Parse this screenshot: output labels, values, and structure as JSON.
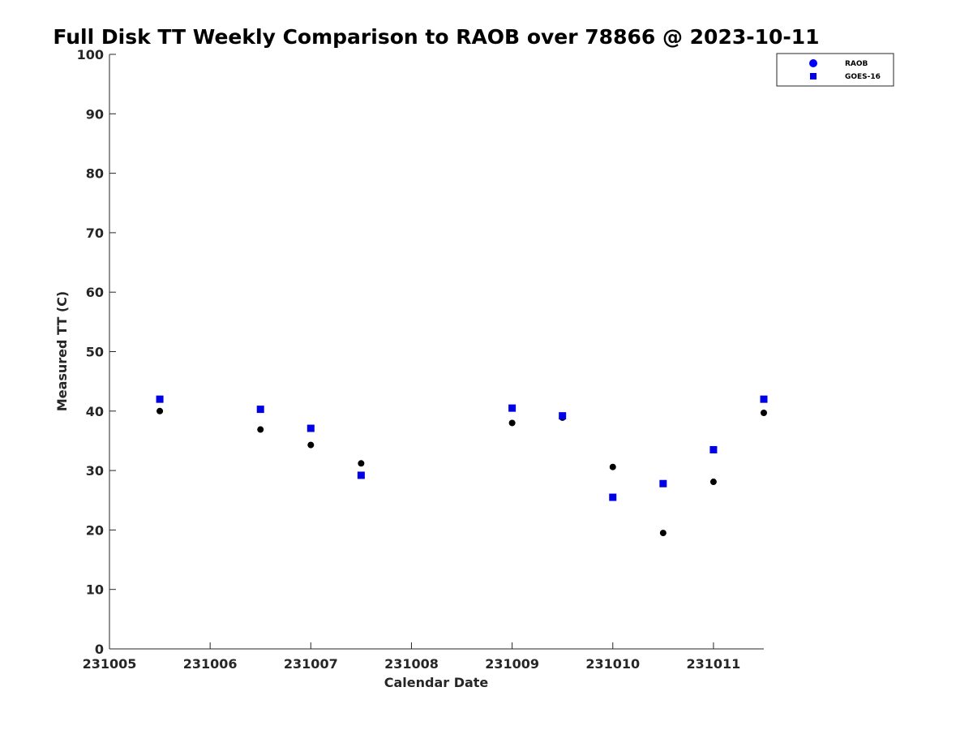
{
  "chart_data": {
    "type": "scatter",
    "title": "Full Disk TT Weekly Comparison to RAOB over 78866 @ 2023-10-11",
    "xlabel": "Calendar Date",
    "ylabel": "Measured TT (C)",
    "xlim": [
      "231005",
      "231011.5"
    ],
    "ylim": [
      0,
      100
    ],
    "x_tick_labels": [
      "231005",
      "231006",
      "231007",
      "231008",
      "231009",
      "231010",
      "231011"
    ],
    "y_tick_labels": [
      "0",
      "10",
      "20",
      "30",
      "40",
      "50",
      "60",
      "70",
      "80",
      "90",
      "100"
    ],
    "grid": false,
    "legend_position": "top-right",
    "series": [
      {
        "name": "RAOB",
        "marker": "circle",
        "color": "#000000",
        "legend_color": "#0000ff",
        "x": [
          231005.5,
          231006.5,
          231007,
          231007.5,
          231009,
          231009.5,
          231010,
          231010.5,
          231011,
          231011.5
        ],
        "y": [
          40.0,
          36.9,
          34.3,
          31.2,
          38.0,
          38.9,
          30.6,
          19.5,
          28.1,
          39.7
        ]
      },
      {
        "name": "GOES-16",
        "marker": "square",
        "color": "#0000e6",
        "x": [
          231005.5,
          231006.5,
          231007,
          231007.5,
          231009,
          231009.5,
          231010,
          231010.5,
          231011,
          231011.5
        ],
        "y": [
          42.0,
          40.3,
          37.1,
          29.2,
          40.5,
          39.2,
          25.5,
          27.8,
          33.5,
          42.0
        ]
      }
    ]
  }
}
